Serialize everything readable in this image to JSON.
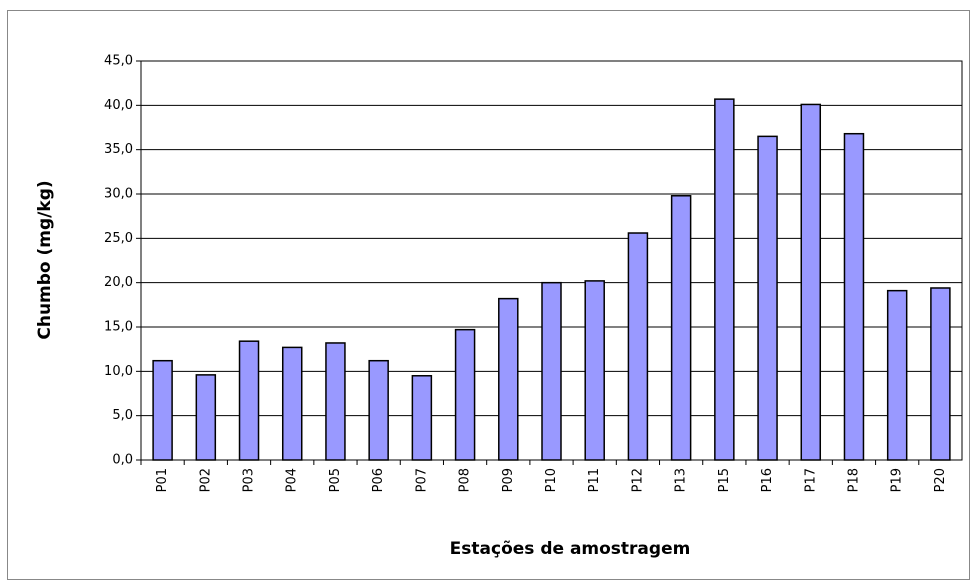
{
  "chart_data": {
    "type": "bar",
    "x_label": "Estações de amostragem",
    "y_label": "Chumbo (mg/kg)",
    "categories": [
      "P01",
      "P02",
      "P03",
      "P04",
      "P05",
      "P06",
      "P07",
      "P08",
      "P09",
      "P10",
      "P11",
      "P12",
      "P13",
      "P15",
      "P16",
      "P17",
      "P18",
      "P19",
      "P20"
    ],
    "values": [
      11.2,
      9.6,
      13.4,
      12.7,
      13.2,
      11.2,
      9.5,
      14.7,
      18.2,
      20.0,
      20.2,
      25.6,
      29.8,
      40.7,
      36.5,
      40.1,
      36.8,
      19.1,
      19.4
    ],
    "color": "#9999ff",
    "ylim": [
      0,
      45
    ],
    "yticks": [
      {
        "value": 0,
        "label": "0,0"
      },
      {
        "value": 5,
        "label": "5,0"
      },
      {
        "value": 10,
        "label": "10,0"
      },
      {
        "value": 15,
        "label": "15,0"
      },
      {
        "value": 20,
        "label": "20,0"
      },
      {
        "value": 25,
        "label": "25,0"
      },
      {
        "value": 30,
        "label": "30,0"
      },
      {
        "value": 35,
        "label": "35,0"
      },
      {
        "value": 40,
        "label": "40,0"
      },
      {
        "value": 45,
        "label": "45,0"
      }
    ],
    "grid": true
  }
}
